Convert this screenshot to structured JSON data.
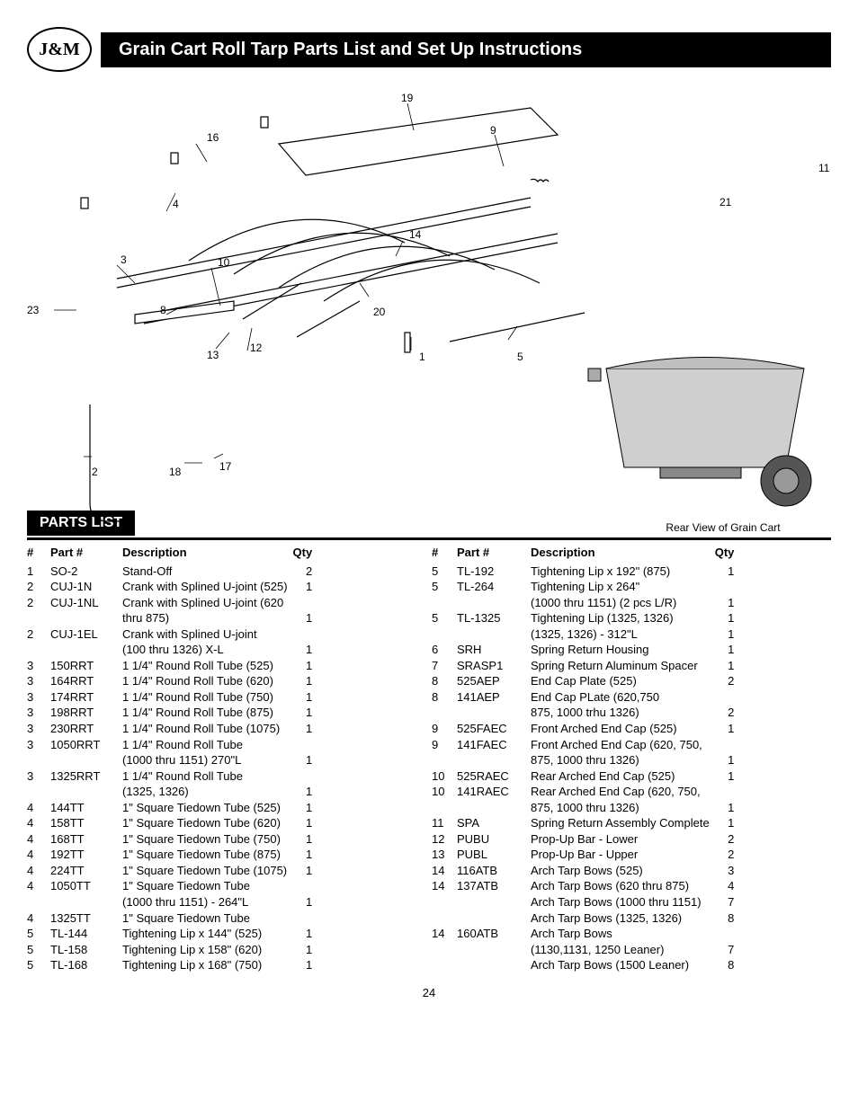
{
  "logo_text": "J&M",
  "title": "Grain Cart Roll Tarp Parts List and Set Up Instructions",
  "parts_list_label": "PARTS LIST",
  "rear_view_label": "Rear View of Grain Cart",
  "page_number": "24",
  "headers": {
    "num": "#",
    "part": "Part #",
    "desc": "Description",
    "qty": "Qty"
  },
  "callouts": {
    "c1": "1",
    "c2": "2",
    "c3": "3",
    "c4": "4",
    "c5": "5",
    "c8": "8",
    "c9": "9",
    "c10": "10",
    "c11": "11",
    "c12": "12",
    "c13": "13",
    "c14": "14",
    "c16": "16",
    "c17": "17",
    "c18": "18",
    "c19": "19",
    "c20": "20",
    "c21": "21",
    "c23": "23"
  },
  "left_rows": [
    {
      "num": "1",
      "part": "SO-2",
      "desc": "Stand-Off",
      "qty": "2"
    },
    {
      "num": "2",
      "part": "CUJ-1N",
      "desc": "Crank with Splined U-joint (525)",
      "qty": "1"
    },
    {
      "num": "2",
      "part": "CUJ-1NL",
      "desc": "Crank with Splined U-joint (620",
      "qty": ""
    },
    {
      "num": "",
      "part": "",
      "desc": "thru 875)",
      "qty": "1"
    },
    {
      "num": "2",
      "part": "CUJ-1EL",
      "desc": "Crank with Splined U-joint",
      "qty": ""
    },
    {
      "num": "",
      "part": "",
      "desc": "(100 thru 1326) X-L",
      "qty": "1"
    },
    {
      "num": "3",
      "part": "150RRT",
      "desc": "1 1/4\" Round Roll Tube (525)",
      "qty": "1"
    },
    {
      "num": "3",
      "part": "164RRT",
      "desc": "1 1/4\" Round Roll Tube (620)",
      "qty": "1"
    },
    {
      "num": "3",
      "part": "174RRT",
      "desc": "1 1/4\" Round Roll Tube (750)",
      "qty": "1"
    },
    {
      "num": "3",
      "part": "198RRT",
      "desc": "1 1/4\" Round Roll Tube (875)",
      "qty": "1"
    },
    {
      "num": "3",
      "part": "230RRT",
      "desc": "1 1/4\" Round Roll Tube (1075)",
      "qty": "1"
    },
    {
      "num": "3",
      "part": "1050RRT",
      "desc": "1 1/4\" Round Roll Tube",
      "qty": ""
    },
    {
      "num": "",
      "part": "",
      "desc": "(1000 thru 1151) 270\"L",
      "qty": "1"
    },
    {
      "num": "3",
      "part": "1325RRT",
      "desc": "1 1/4\" Round Roll Tube",
      "qty": ""
    },
    {
      "num": "",
      "part": "",
      "desc": "(1325, 1326)",
      "qty": "1"
    },
    {
      "num": "4",
      "part": "144TT",
      "desc": "1\" Square Tiedown Tube (525)",
      "qty": "1"
    },
    {
      "num": "4",
      "part": "158TT",
      "desc": "1\" Square Tiedown Tube (620)",
      "qty": "1"
    },
    {
      "num": "4",
      "part": "168TT",
      "desc": "1\" Square Tiedown Tube (750)",
      "qty": "1"
    },
    {
      "num": "4",
      "part": "192TT",
      "desc": "1\" Square Tiedown Tube (875)",
      "qty": "1"
    },
    {
      "num": "4",
      "part": "224TT",
      "desc": "1\" Square Tiedown Tube (1075)",
      "qty": "1"
    },
    {
      "num": "4",
      "part": "1050TT",
      "desc": "1\" Square Tiedown Tube",
      "qty": ""
    },
    {
      "num": "",
      "part": "",
      "desc": "(1000 thru 1151) - 264\"L",
      "qty": "1"
    },
    {
      "num": "4",
      "part": "1325TT",
      "desc": "1\" Square Tiedown Tube",
      "qty": ""
    },
    {
      "num": "5",
      "part": "TL-144",
      "desc": "Tightening Lip x 144\" (525)",
      "qty": "1"
    },
    {
      "num": "5",
      "part": "TL-158",
      "desc": "Tightening Lip x 158\" (620)",
      "qty": "1"
    },
    {
      "num": "5",
      "part": "TL-168",
      "desc": "Tightening Lip x 168\" (750)",
      "qty": "1"
    }
  ],
  "right_rows": [
    {
      "num": "5",
      "part": "TL-192",
      "desc": "Tightening Lip x 192\" (875)",
      "qty": "1"
    },
    {
      "num": "5",
      "part": "TL-264",
      "desc": "Tightening Lip x 264\"",
      "qty": ""
    },
    {
      "num": "",
      "part": "",
      "desc": "(1000 thru 1151) (2 pcs L/R)",
      "qty": "1"
    },
    {
      "num": "5",
      "part": "TL-1325",
      "desc": "Tightening Lip (1325, 1326)",
      "qty": "1"
    },
    {
      "num": "",
      "part": "",
      "desc": "(1325, 1326) - 312\"L",
      "qty": "1"
    },
    {
      "num": "6",
      "part": "SRH",
      "desc": "Spring Return Housing",
      "qty": "1"
    },
    {
      "num": "7",
      "part": "SRASP1",
      "desc": "Spring Return Aluminum Spacer",
      "qty": "1"
    },
    {
      "num": "8",
      "part": "525AEP",
      "desc": "End Cap Plate (525)",
      "qty": "2"
    },
    {
      "num": "8",
      "part": "141AEP",
      "desc": "End Cap PLate (620,750",
      "qty": ""
    },
    {
      "num": "",
      "part": "",
      "desc": "875, 1000 trhu 1326)",
      "qty": "2"
    },
    {
      "num": "9",
      "part": "525FAEC",
      "desc": "Front Arched End Cap (525)",
      "qty": "1"
    },
    {
      "num": "9",
      "part": "141FAEC",
      "desc": "Front Arched End Cap (620, 750,",
      "qty": ""
    },
    {
      "num": "",
      "part": "",
      "desc": "875, 1000 thru 1326)",
      "qty": "1"
    },
    {
      "num": "10",
      "part": "525RAEC",
      "desc": "Rear Arched End Cap  (525)",
      "qty": "1"
    },
    {
      "num": "10",
      "part": "141RAEC",
      "desc": "Rear Arched End Cap (620, 750,",
      "qty": ""
    },
    {
      "num": "",
      "part": "",
      "desc": "875, 1000 thru 1326)",
      "qty": "1"
    },
    {
      "num": "11",
      "part": "SPA",
      "desc": "Spring Return Assembly Complete",
      "qty": "1"
    },
    {
      "num": "12",
      "part": "PUBU",
      "desc": "Prop-Up Bar - Lower",
      "qty": "2"
    },
    {
      "num": "13",
      "part": "PUBL",
      "desc": "Prop-Up Bar - Upper",
      "qty": "2"
    },
    {
      "num": "14",
      "part": "116ATB",
      "desc": "Arch Tarp Bows (525)",
      "qty": "3"
    },
    {
      "num": "14",
      "part": "137ATB",
      "desc": "Arch Tarp Bows (620 thru 875)",
      "qty": "4"
    },
    {
      "num": "",
      "part": "",
      "desc": "Arch Tarp Bows (1000 thru 1151)",
      "qty": "7"
    },
    {
      "num": "",
      "part": "",
      "desc": "Arch Tarp Bows (1325, 1326)",
      "qty": "8"
    },
    {
      "num": "14",
      "part": "160ATB",
      "desc": "Arch Tarp Bows",
      "qty": ""
    },
    {
      "num": "",
      "part": "",
      "desc": "          (1130,1131, 1250 Leaner)",
      "qty": "7"
    },
    {
      "num": "",
      "part": "",
      "desc": "Arch Tarp Bows (1500 Leaner)",
      "qty": "8"
    }
  ]
}
